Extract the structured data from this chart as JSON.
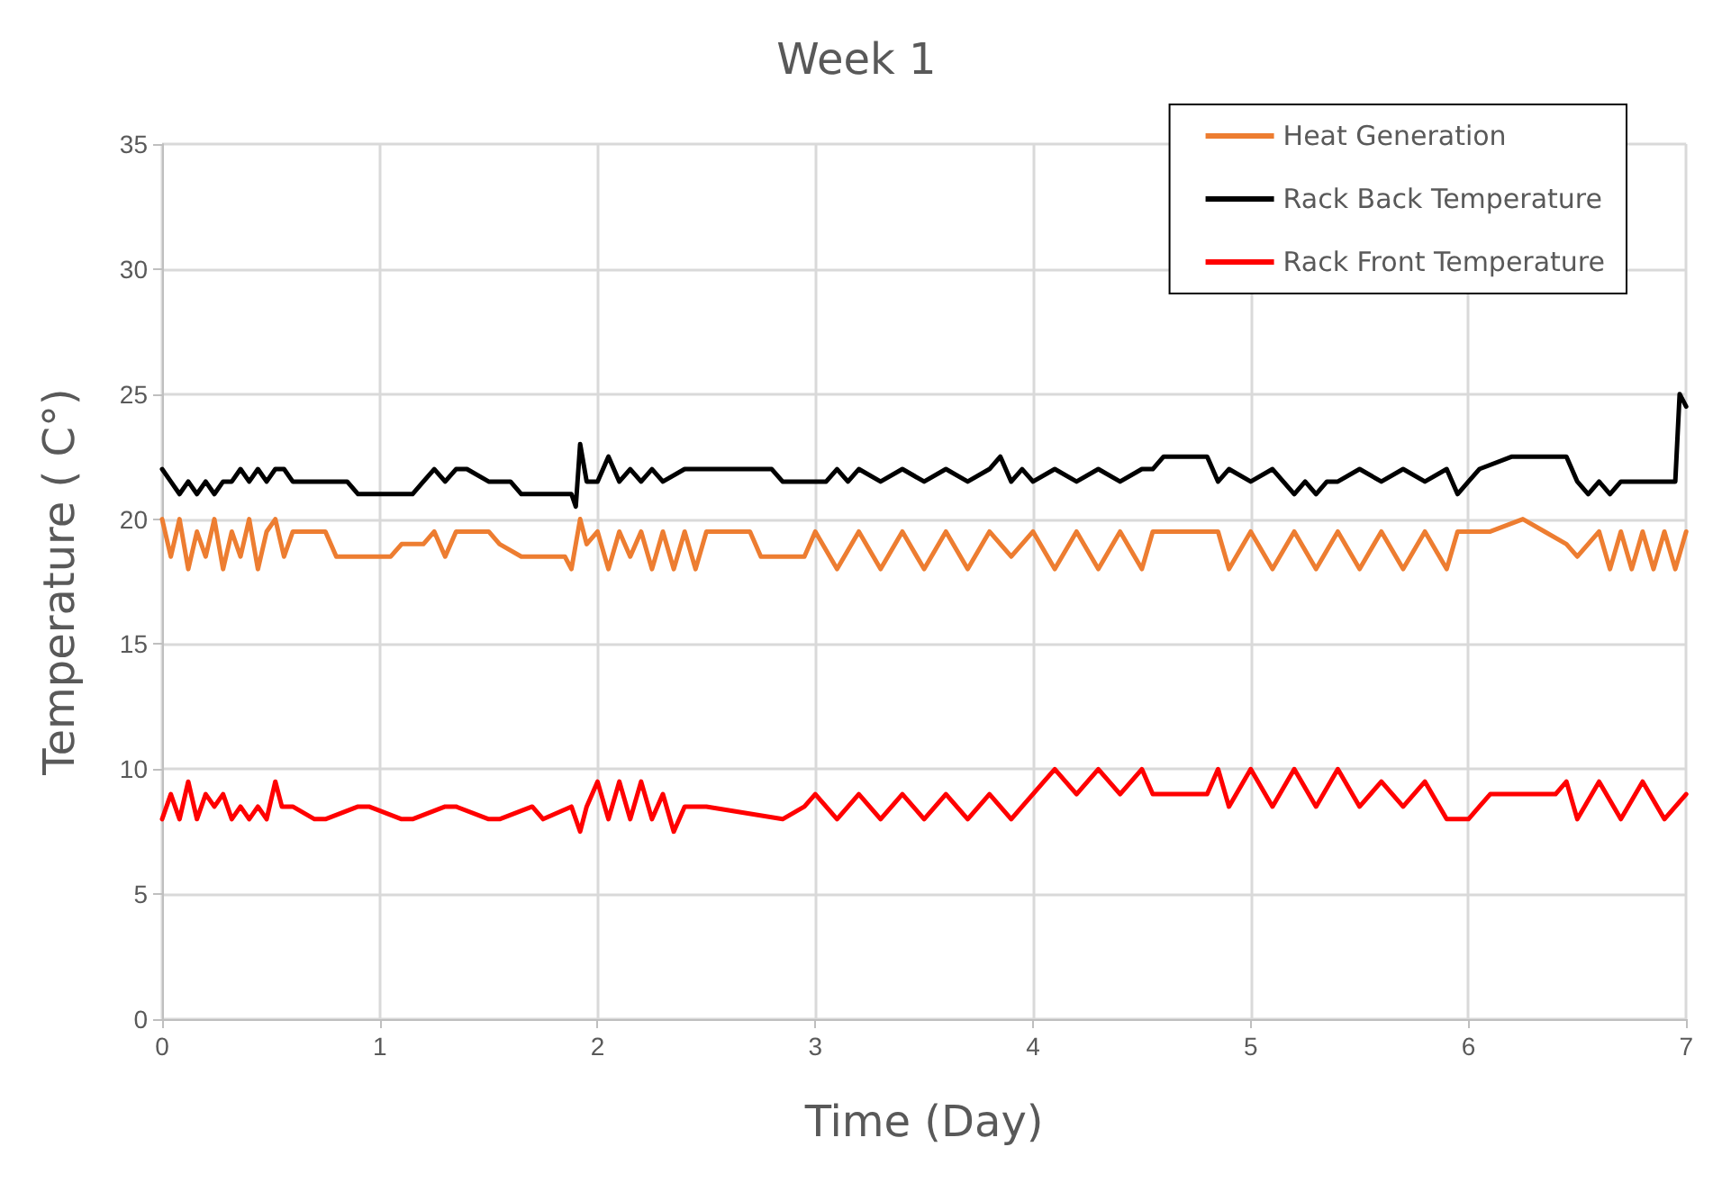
{
  "chart_data": {
    "type": "line",
    "title": "Week 1",
    "xlabel": "Time (Day)",
    "ylabel": "Temperature ( C°)",
    "xlim": [
      0,
      7
    ],
    "xticks": [
      0,
      1,
      2,
      3,
      4,
      5,
      6,
      7
    ],
    "ylim": [
      0,
      35
    ],
    "yticks": [
      0,
      5,
      10,
      15,
      20,
      25,
      30,
      35
    ],
    "grid": true,
    "legend": "top right",
    "marker": "none",
    "line_style": "solid",
    "series": [
      {
        "name": "Heat Generation",
        "color": "#ed7d31",
        "x": [
          0,
          0.04,
          0.08,
          0.12,
          0.16,
          0.2,
          0.24,
          0.28,
          0.32,
          0.36,
          0.4,
          0.44,
          0.48,
          0.52,
          0.56,
          0.6,
          0.75,
          0.8,
          1.05,
          1.1,
          1.2,
          1.25,
          1.3,
          1.35,
          1.4,
          1.5,
          1.55,
          1.65,
          1.85,
          1.88,
          1.92,
          1.95,
          2.0,
          2.05,
          2.1,
          2.15,
          2.2,
          2.25,
          2.3,
          2.35,
          2.4,
          2.45,
          2.5,
          2.7,
          2.75,
          2.95,
          3.0,
          3.1,
          3.2,
          3.3,
          3.4,
          3.5,
          3.6,
          3.7,
          3.8,
          3.9,
          4.0,
          4.1,
          4.2,
          4.3,
          4.4,
          4.5,
          4.55,
          4.85,
          4.9,
          5.0,
          5.1,
          5.2,
          5.3,
          5.4,
          5.5,
          5.6,
          5.7,
          5.8,
          5.9,
          5.95,
          6.1,
          6.25,
          6.35,
          6.45,
          6.5,
          6.6,
          6.65,
          6.7,
          6.75,
          6.8,
          6.85,
          6.9,
          6.95,
          7.0
        ],
        "values": [
          20,
          18.5,
          20,
          18,
          19.5,
          18.5,
          20,
          18,
          19.5,
          18.5,
          20,
          18,
          19.5,
          20,
          18.5,
          19.5,
          19.5,
          18.5,
          18.5,
          19,
          19,
          19.5,
          18.5,
          19.5,
          19.5,
          19.5,
          19,
          18.5,
          18.5,
          18,
          20,
          19,
          19.5,
          18,
          19.5,
          18.5,
          19.5,
          18,
          19.5,
          18,
          19.5,
          18,
          19.5,
          19.5,
          18.5,
          18.5,
          19.5,
          18,
          19.5,
          18,
          19.5,
          18,
          19.5,
          18,
          19.5,
          18.5,
          19.5,
          18,
          19.5,
          18,
          19.5,
          18,
          19.5,
          19.5,
          18,
          19.5,
          18,
          19.5,
          18,
          19.5,
          18,
          19.5,
          18,
          19.5,
          18,
          19.5,
          19.5,
          20,
          19.5,
          19,
          18.5,
          19.5,
          18,
          19.5,
          18,
          19.5,
          18,
          19.5,
          18,
          19.5
        ]
      },
      {
        "name": "Rack Back Temperature",
        "color": "#000000",
        "x": [
          0,
          0.04,
          0.08,
          0.12,
          0.16,
          0.2,
          0.24,
          0.28,
          0.32,
          0.36,
          0.4,
          0.44,
          0.48,
          0.52,
          0.56,
          0.6,
          0.65,
          0.85,
          0.9,
          1.15,
          1.2,
          1.25,
          1.3,
          1.35,
          1.4,
          1.5,
          1.6,
          1.65,
          1.88,
          1.9,
          1.92,
          1.95,
          2.0,
          2.05,
          2.1,
          2.15,
          2.2,
          2.25,
          2.3,
          2.4,
          2.8,
          2.85,
          3.05,
          3.1,
          3.15,
          3.2,
          3.3,
          3.4,
          3.5,
          3.6,
          3.7,
          3.8,
          3.85,
          3.9,
          3.95,
          4.0,
          4.1,
          4.2,
          4.3,
          4.4,
          4.5,
          4.55,
          4.6,
          4.8,
          4.85,
          4.9,
          5.0,
          5.1,
          5.2,
          5.25,
          5.3,
          5.35,
          5.4,
          5.5,
          5.6,
          5.7,
          5.8,
          5.9,
          5.95,
          6.0,
          6.05,
          6.2,
          6.45,
          6.5,
          6.55,
          6.6,
          6.65,
          6.7,
          6.75,
          6.85,
          6.95,
          6.97,
          7.0
        ],
        "values": [
          22,
          21.5,
          21,
          21.5,
          21,
          21.5,
          21,
          21.5,
          21.5,
          22,
          21.5,
          22,
          21.5,
          22,
          22,
          21.5,
          21.5,
          21.5,
          21,
          21,
          21.5,
          22,
          21.5,
          22,
          22,
          21.5,
          21.5,
          21,
          21,
          20.5,
          23,
          21.5,
          21.5,
          22.5,
          21.5,
          22,
          21.5,
          22,
          21.5,
          22,
          22,
          21.5,
          21.5,
          22,
          21.5,
          22,
          21.5,
          22,
          21.5,
          22,
          21.5,
          22,
          22.5,
          21.5,
          22,
          21.5,
          22,
          21.5,
          22,
          21.5,
          22,
          22,
          22.5,
          22.5,
          21.5,
          22,
          21.5,
          22,
          21,
          21.5,
          21,
          21.5,
          21.5,
          22,
          21.5,
          22,
          21.5,
          22,
          21,
          21.5,
          22,
          22.5,
          22.5,
          21.5,
          21,
          21.5,
          21,
          21.5,
          21.5,
          21.5,
          21.5,
          25,
          24.5
        ]
      },
      {
        "name": "Rack Front Temperature",
        "color": "#ff0000",
        "x": [
          0,
          0.04,
          0.08,
          0.12,
          0.16,
          0.2,
          0.24,
          0.28,
          0.32,
          0.36,
          0.4,
          0.44,
          0.48,
          0.52,
          0.55,
          0.6,
          0.7,
          0.75,
          0.9,
          0.95,
          1.1,
          1.15,
          1.3,
          1.35,
          1.5,
          1.55,
          1.7,
          1.75,
          1.88,
          1.92,
          1.95,
          2.0,
          2.05,
          2.1,
          2.15,
          2.2,
          2.25,
          2.3,
          2.35,
          2.4,
          2.5,
          2.85,
          2.95,
          3.0,
          3.1,
          3.2,
          3.3,
          3.4,
          3.5,
          3.6,
          3.7,
          3.8,
          3.9,
          3.95,
          4.05,
          4.1,
          4.2,
          4.3,
          4.4,
          4.5,
          4.55,
          4.8,
          4.85,
          4.9,
          5.0,
          5.1,
          5.2,
          5.3,
          5.4,
          5.5,
          5.6,
          5.7,
          5.8,
          5.9,
          6.0,
          6.05,
          6.1,
          6.4,
          6.45,
          6.5,
          6.6,
          6.7,
          6.8,
          6.9,
          7.0
        ],
        "values": [
          8,
          9,
          8,
          9.5,
          8,
          9,
          8.5,
          9,
          8,
          8.5,
          8,
          8.5,
          8,
          9.5,
          8.5,
          8.5,
          8,
          8,
          8.5,
          8.5,
          8,
          8,
          8.5,
          8.5,
          8,
          8,
          8.5,
          8,
          8.5,
          7.5,
          8.5,
          9.5,
          8,
          9.5,
          8,
          9.5,
          8,
          9,
          7.5,
          8.5,
          8.5,
          8,
          8.5,
          9,
          8,
          9,
          8,
          9,
          8,
          9,
          8,
          9,
          8,
          8.5,
          9.5,
          10,
          9,
          10,
          9,
          10,
          9,
          9,
          10,
          8.5,
          10,
          8.5,
          10,
          8.5,
          10,
          8.5,
          9.5,
          8.5,
          9.5,
          8,
          8,
          8.5,
          9,
          9,
          9.5,
          8,
          9.5,
          8,
          9.5,
          8,
          9
        ]
      }
    ]
  }
}
